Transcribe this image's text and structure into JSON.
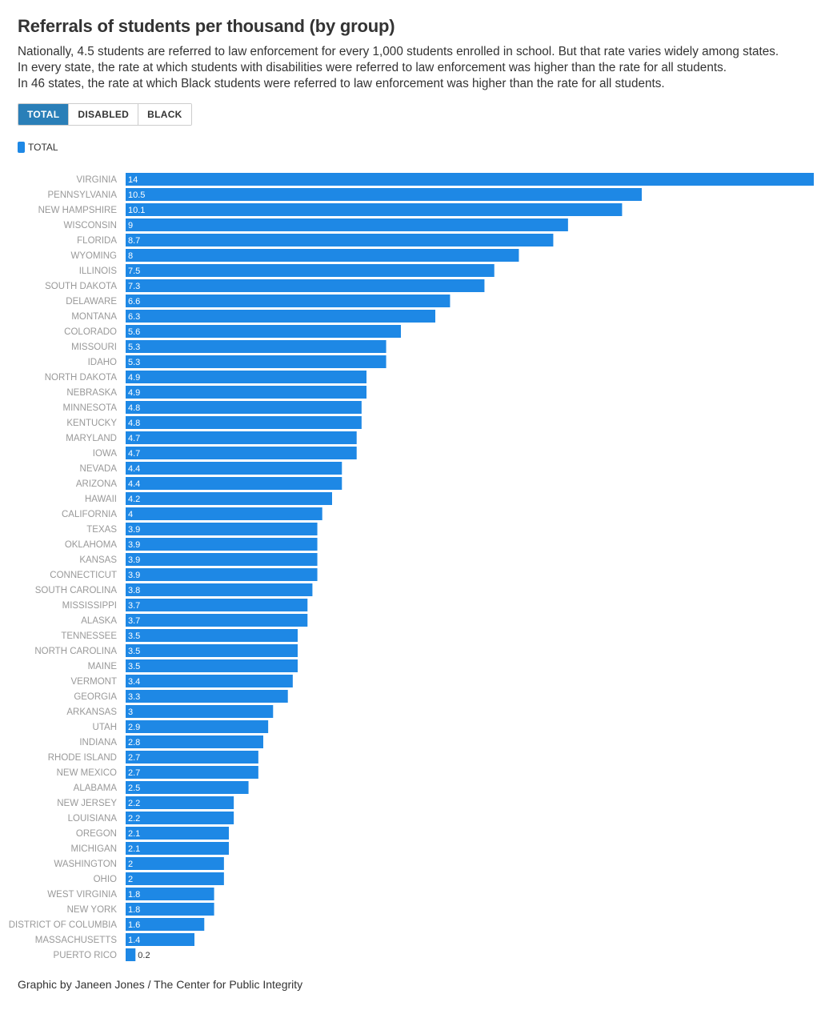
{
  "header": {
    "title": "Referrals of students per thousand (by group)",
    "subtitle_lines": [
      "Nationally, 4.5 students are referred to law enforcement for every 1,000 students enrolled in school. But that rate varies widely among states.",
      "In every state, the rate at which students with disabilities were referred to law enforcement was higher than the rate for all students.",
      "In 46 states, the rate at which Black students were referred to law enforcement was higher than the rate for all students."
    ]
  },
  "tabs": [
    {
      "label": "TOTAL",
      "active": true
    },
    {
      "label": "DISABLED",
      "active": false
    },
    {
      "label": "BLACK",
      "active": false
    }
  ],
  "legend": {
    "label": "TOTAL",
    "color": "#1e88e5"
  },
  "footer": {
    "credit": "Graphic by Janeen Jones / The Center for Public Integrity"
  },
  "chart_data": {
    "type": "bar",
    "orientation": "horizontal",
    "title": "Referrals of students per thousand (by group)",
    "xlabel": "",
    "ylabel": "",
    "xlim": [
      0,
      14
    ],
    "grid": false,
    "legend_position": "top-left",
    "bar_color": "#1e88e5",
    "categories": [
      "VIRGINIA",
      "PENNSYLVANIA",
      "NEW HAMPSHIRE",
      "WISCONSIN",
      "FLORIDA",
      "WYOMING",
      "ILLINOIS",
      "SOUTH DAKOTA",
      "DELAWARE",
      "MONTANA",
      "COLORADO",
      "MISSOURI",
      "IDAHO",
      "NORTH DAKOTA",
      "NEBRASKA",
      "MINNESOTA",
      "KENTUCKY",
      "MARYLAND",
      "IOWA",
      "NEVADA",
      "ARIZONA",
      "HAWAII",
      "CALIFORNIA",
      "TEXAS",
      "OKLAHOMA",
      "KANSAS",
      "CONNECTICUT",
      "SOUTH CAROLINA",
      "MISSISSIPPI",
      "ALASKA",
      "TENNESSEE",
      "NORTH CAROLINA",
      "MAINE",
      "VERMONT",
      "GEORGIA",
      "ARKANSAS",
      "UTAH",
      "INDIANA",
      "RHODE ISLAND",
      "NEW MEXICO",
      "ALABAMA",
      "NEW JERSEY",
      "LOUISIANA",
      "OREGON",
      "MICHIGAN",
      "WASHINGTON",
      "OHIO",
      "WEST VIRGINIA",
      "NEW YORK",
      "DISTRICT OF COLUMBIA",
      "MASSACHUSETTS",
      "PUERTO RICO"
    ],
    "series": [
      {
        "name": "TOTAL",
        "values": [
          14,
          10.5,
          10.1,
          9,
          8.7,
          8,
          7.5,
          7.3,
          6.6,
          6.3,
          5.6,
          5.3,
          5.3,
          4.9,
          4.9,
          4.8,
          4.8,
          4.7,
          4.7,
          4.4,
          4.4,
          4.2,
          4,
          3.9,
          3.9,
          3.9,
          3.9,
          3.8,
          3.7,
          3.7,
          3.5,
          3.5,
          3.5,
          3.4,
          3.3,
          3,
          2.9,
          2.8,
          2.7,
          2.7,
          2.5,
          2.2,
          2.2,
          2.1,
          2.1,
          2,
          2,
          1.8,
          1.8,
          1.6,
          1.4,
          0.2
        ]
      }
    ]
  }
}
